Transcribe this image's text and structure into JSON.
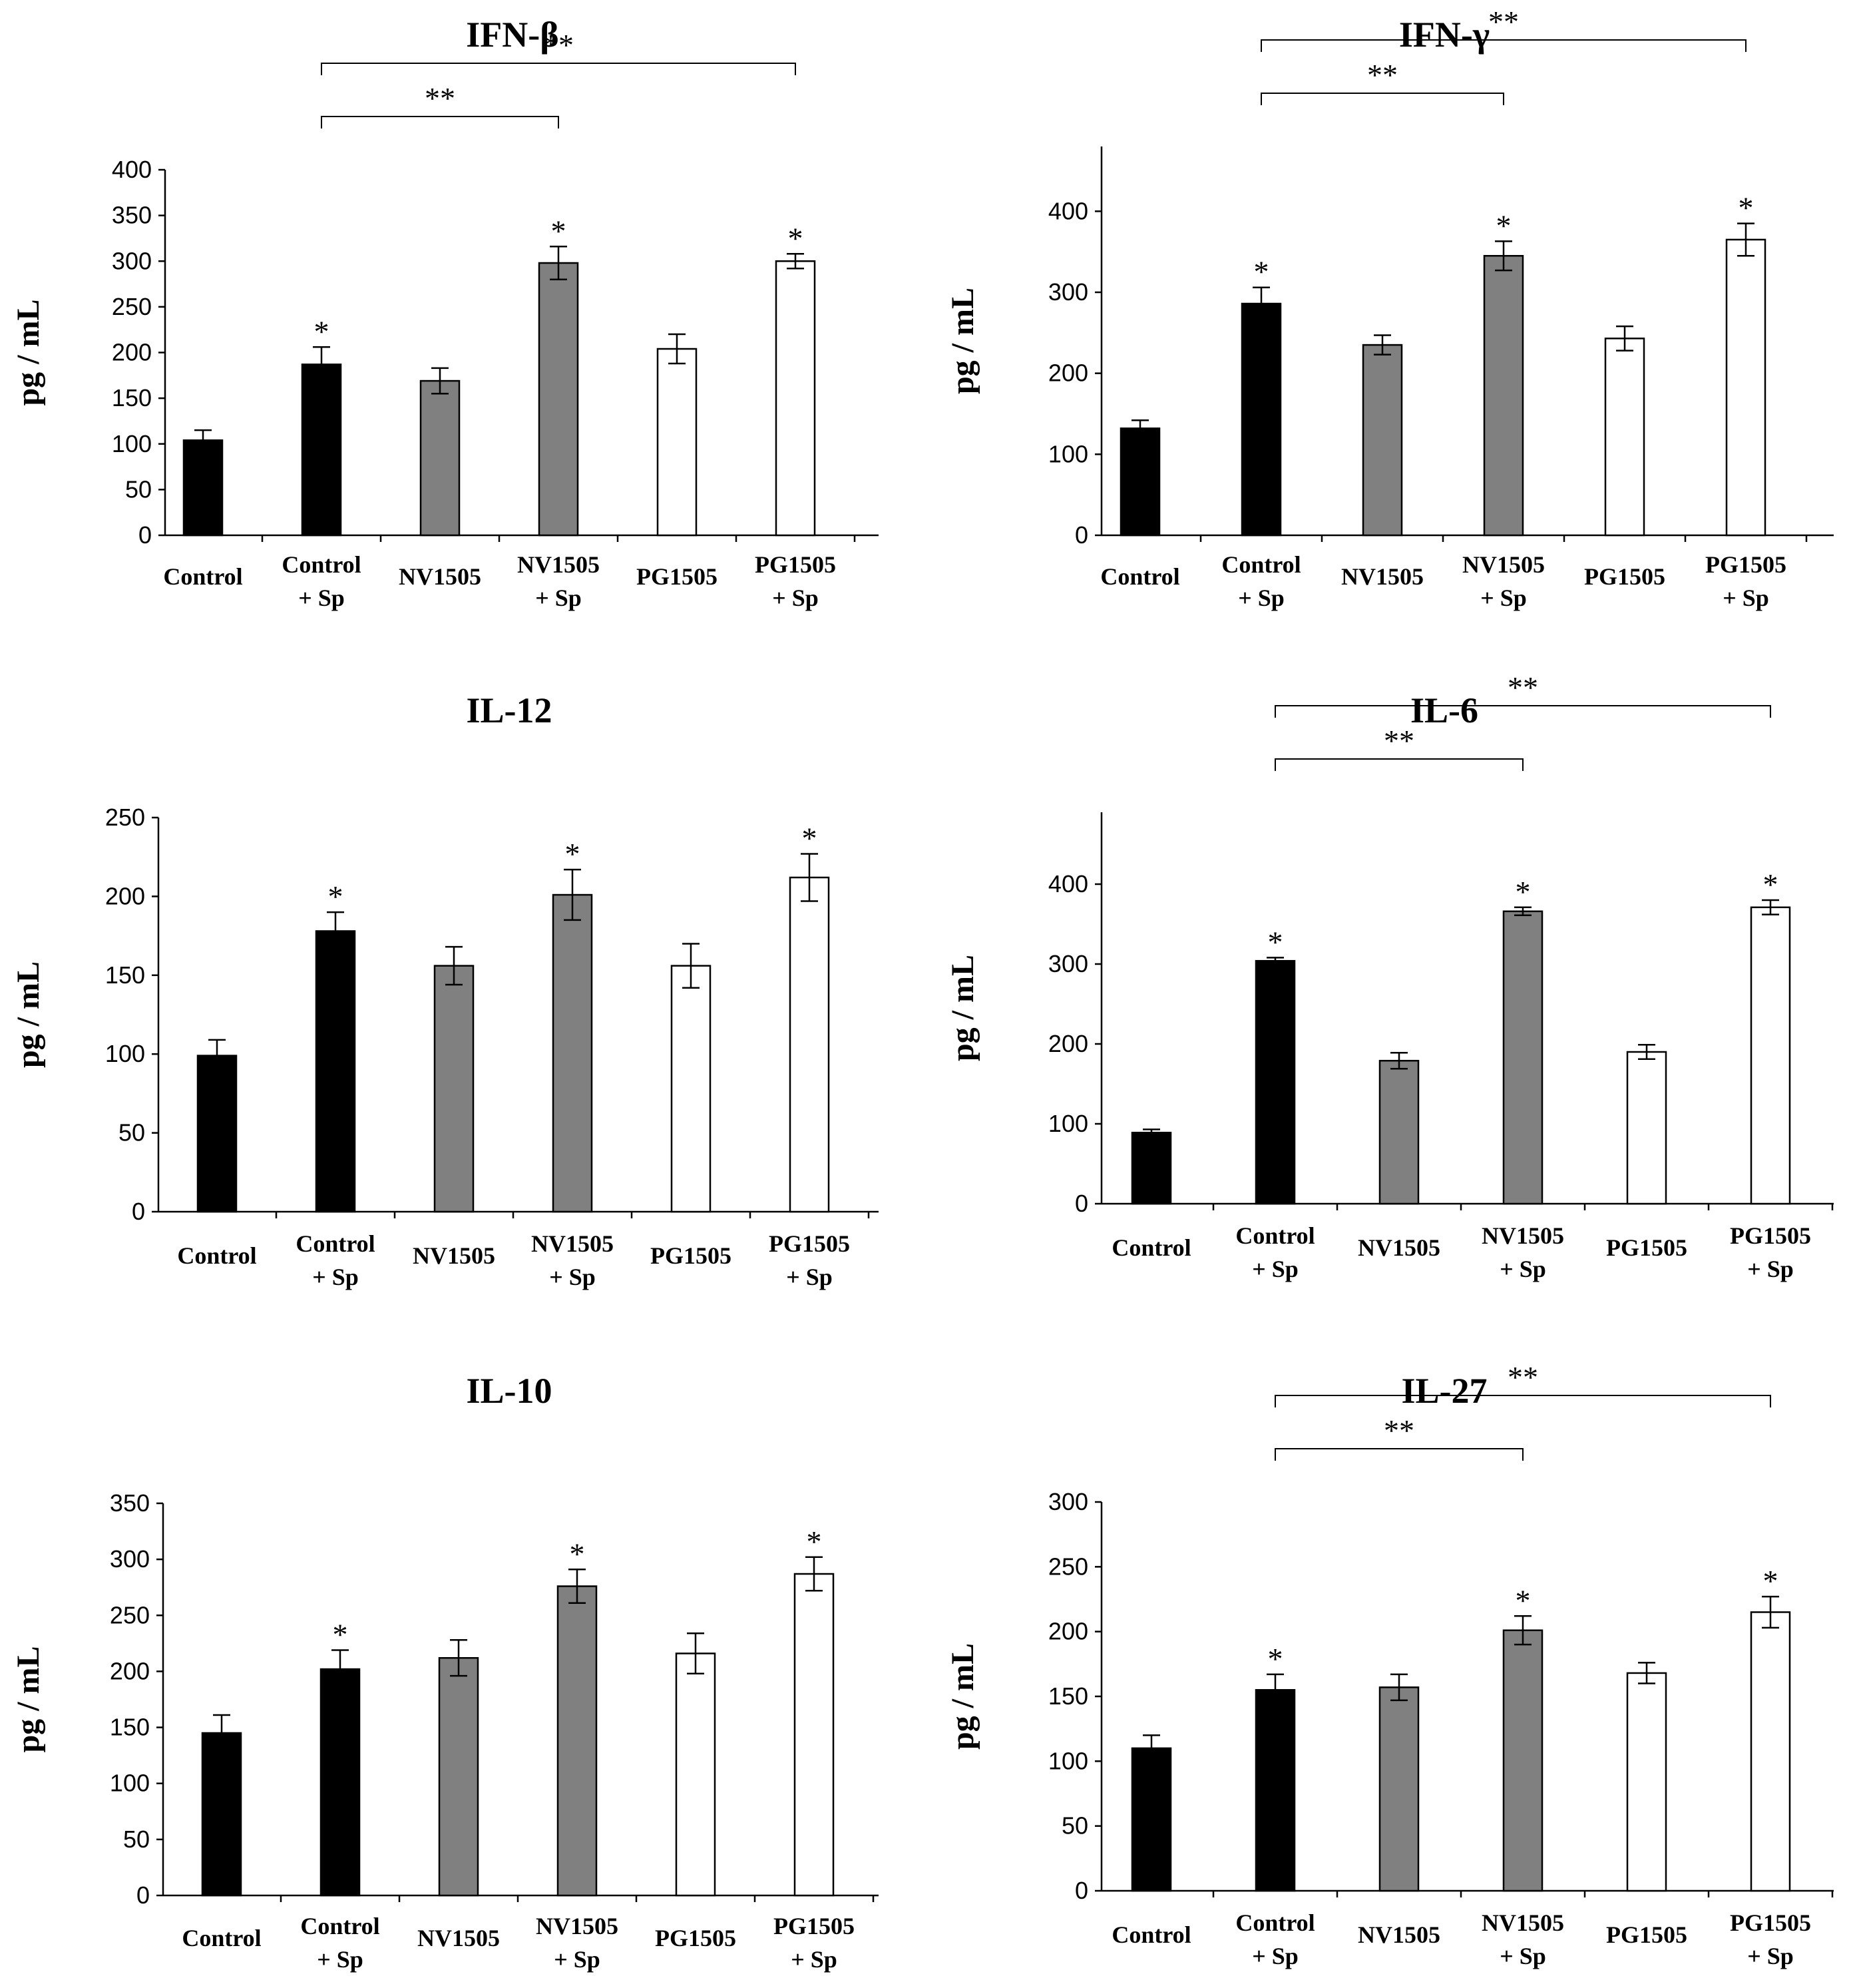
{
  "categories": [
    [
      "Control"
    ],
    [
      "Control",
      "+ Sp"
    ],
    [
      "NV1505"
    ],
    [
      "NV1505",
      "+ Sp"
    ],
    [
      "PG1505"
    ],
    [
      "PG1505",
      "+ Sp"
    ]
  ],
  "colors": {
    "control": "#000000",
    "nv1505": "#808080",
    "pg1505": "#ffffff",
    "outline": "#000000"
  },
  "chart_data": [
    {
      "type": "bar",
      "title": "IFN-β",
      "ylabel": "pg / mL",
      "ylim": [
        0,
        400
      ],
      "yticks": [
        0,
        50,
        100,
        150,
        200,
        250,
        300,
        350,
        400
      ],
      "values": [
        104,
        187,
        169,
        298,
        204,
        300
      ],
      "errors": [
        11,
        19,
        14,
        18,
        16,
        8
      ],
      "stars": [
        "",
        "*",
        "",
        "*",
        "",
        "*"
      ],
      "brackets": [
        {
          "from": 1,
          "to": 3,
          "label": "**"
        },
        {
          "from": 1,
          "to": 5,
          "label": "**"
        }
      ]
    },
    {
      "type": "bar",
      "title": "IFN-γ",
      "ylabel": "pg / mL",
      "ylim": [
        0,
        480
      ],
      "yticks": [
        0,
        100,
        200,
        300,
        400
      ],
      "values": [
        132,
        286,
        235,
        345,
        243,
        365
      ],
      "errors": [
        10,
        20,
        12,
        18,
        15,
        20
      ],
      "stars": [
        "",
        "*",
        "",
        "*",
        "",
        "*"
      ],
      "brackets": [
        {
          "from": 1,
          "to": 3,
          "label": "**"
        },
        {
          "from": 1,
          "to": 5,
          "label": "**"
        }
      ]
    },
    {
      "type": "bar",
      "title": "IL-12",
      "ylabel": "pg / mL",
      "ylim": [
        0,
        250
      ],
      "yticks": [
        0,
        50,
        100,
        150,
        200,
        250
      ],
      "values": [
        99,
        178,
        156,
        201,
        156,
        212
      ],
      "errors": [
        10,
        12,
        12,
        16,
        14,
        15
      ],
      "stars": [
        "",
        "*",
        "",
        "*",
        "",
        "*"
      ],
      "brackets": []
    },
    {
      "type": "bar",
      "title": "IL-6",
      "ylabel": "pg / mL",
      "ylim": [
        0,
        490
      ],
      "yticks": [
        0,
        100,
        200,
        300,
        400
      ],
      "values": [
        89,
        304,
        179,
        366,
        190,
        371
      ],
      "errors": [
        4,
        4,
        10,
        5,
        9,
        9
      ],
      "stars": [
        "",
        "*",
        "",
        "*",
        "",
        "*"
      ],
      "brackets": [
        {
          "from": 1,
          "to": 3,
          "label": "**"
        },
        {
          "from": 1,
          "to": 5,
          "label": "**"
        }
      ]
    },
    {
      "type": "bar",
      "title": "IL-10",
      "ylabel": "pg / mL",
      "ylim": [
        0,
        350
      ],
      "yticks": [
        0,
        50,
        100,
        150,
        200,
        250,
        300,
        350
      ],
      "values": [
        145,
        202,
        212,
        276,
        216,
        287
      ],
      "errors": [
        16,
        17,
        16,
        15,
        18,
        15
      ],
      "stars": [
        "",
        "*",
        "",
        "*",
        "",
        "*"
      ],
      "brackets": []
    },
    {
      "type": "bar",
      "title": "IL-27",
      "ylabel": "pg / mL",
      "ylim": [
        0,
        300
      ],
      "yticks": [
        0,
        50,
        100,
        150,
        200,
        250,
        300
      ],
      "values": [
        110,
        155,
        157,
        201,
        168,
        215
      ],
      "errors": [
        10,
        12,
        10,
        11,
        8,
        12
      ],
      "stars": [
        "",
        "*",
        "",
        "*",
        "",
        "*"
      ],
      "brackets": [
        {
          "from": 1,
          "to": 3,
          "label": "**"
        },
        {
          "from": 1,
          "to": 5,
          "label": "**"
        }
      ]
    }
  ]
}
